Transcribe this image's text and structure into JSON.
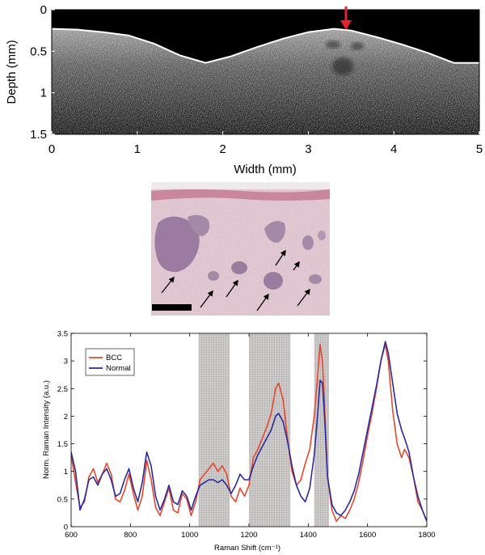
{
  "chart_data": [
    {
      "type": "heatmap",
      "panel": "oct",
      "xlabel": "Width (mm)",
      "ylabel": "Depth (mm)",
      "xlim": [
        0,
        5
      ],
      "ylim": [
        0,
        1.5
      ],
      "x_ticks": [
        0,
        1,
        2,
        3,
        4,
        5
      ],
      "y_ticks": [
        0,
        0.5,
        1,
        1.5
      ],
      "y_tick_labels": [
        "0",
        "0.5",
        "1",
        "1.5"
      ],
      "y_inverted": true,
      "colormap": "grayscale",
      "surface_depth_profile": {
        "width": [
          0.0,
          0.3,
          0.6,
          0.9,
          1.2,
          1.5,
          1.8,
          2.1,
          2.4,
          2.7,
          3.0,
          3.3,
          3.5,
          3.8,
          4.1,
          4.4,
          4.7,
          4.95
        ],
        "depth": [
          0.23,
          0.24,
          0.27,
          0.31,
          0.41,
          0.55,
          0.64,
          0.56,
          0.45,
          0.35,
          0.27,
          0.23,
          0.25,
          0.33,
          0.42,
          0.52,
          0.64,
          0.64
        ]
      },
      "annotations": [
        {
          "type": "arrow",
          "color": "#e8202a",
          "x": 3.5,
          "y": 0.22
        }
      ]
    },
    {
      "type": "image",
      "panel": "histology",
      "description_colors": {
        "background": "#e8cdd5",
        "nodules": "#9a7a9e"
      },
      "arrows": 9,
      "scale_bar": true
    },
    {
      "type": "line",
      "panel": "raman",
      "xlabel": "Raman Shift (cm⁻¹)",
      "ylabel": "Norm. Raman Intensity (a.u.)",
      "xlim": [
        600,
        1800
      ],
      "ylim": [
        0,
        3.5
      ],
      "x_ticks": [
        600,
        800,
        1000,
        1200,
        1400,
        1600,
        1800
      ],
      "y_ticks": [
        0,
        0.5,
        1,
        1.5,
        2,
        2.5,
        3,
        3.5
      ],
      "y_tick_labels": [
        "0",
        "0.5",
        "1",
        "1.5",
        "2",
        "2.5",
        "3",
        "3.5"
      ],
      "legend_position": "top-left",
      "shaded_regions": [
        [
          1030,
          1135
        ],
        [
          1200,
          1340
        ],
        [
          1420,
          1470
        ]
      ],
      "series": [
        {
          "name": "BCC",
          "color": "#e8472a",
          "x": [
            600,
            615,
            630,
            645,
            660,
            675,
            690,
            705,
            720,
            735,
            750,
            765,
            780,
            795,
            810,
            825,
            840,
            855,
            870,
            885,
            900,
            915,
            930,
            945,
            960,
            975,
            990,
            1005,
            1020,
            1035,
            1050,
            1065,
            1080,
            1095,
            1110,
            1125,
            1140,
            1155,
            1170,
            1185,
            1200,
            1215,
            1230,
            1245,
            1260,
            1275,
            1290,
            1300,
            1315,
            1330,
            1345,
            1360,
            1375,
            1390,
            1405,
            1420,
            1430,
            1440,
            1448,
            1455,
            1465,
            1480,
            1495,
            1510,
            1525,
            1540,
            1555,
            1570,
            1585,
            1600,
            1615,
            1630,
            1645,
            1660,
            1670,
            1685,
            1700,
            1715,
            1725,
            1740,
            1755,
            1770,
            1785,
            1800
          ],
          "y": [
            1.3,
            0.8,
            0.35,
            0.45,
            0.9,
            1.05,
            0.8,
            0.95,
            1.15,
            0.95,
            0.5,
            0.45,
            0.65,
            0.95,
            0.6,
            0.3,
            0.55,
            1.2,
            0.85,
            0.35,
            0.2,
            0.45,
            0.7,
            0.3,
            0.25,
            0.6,
            0.5,
            0.2,
            0.45,
            0.85,
            0.95,
            1.05,
            1.15,
            1.0,
            1.1,
            0.95,
            0.55,
            0.45,
            0.7,
            0.55,
            0.75,
            1.25,
            1.4,
            1.6,
            1.8,
            2.05,
            2.5,
            2.6,
            2.3,
            1.6,
            1.0,
            0.75,
            0.85,
            1.15,
            1.4,
            2.0,
            2.6,
            3.3,
            3.0,
            2.2,
            0.9,
            0.3,
            0.1,
            0.2,
            0.15,
            0.3,
            0.5,
            0.8,
            1.2,
            1.65,
            2.05,
            2.5,
            3.0,
            3.3,
            3.0,
            2.1,
            1.5,
            1.25,
            1.4,
            1.25,
            0.9,
            0.45,
            0.3,
            0.1
          ]
        },
        {
          "name": "Normal",
          "color": "#2a2aa0",
          "x": [
            600,
            615,
            630,
            645,
            660,
            675,
            690,
            705,
            720,
            735,
            750,
            765,
            780,
            795,
            810,
            825,
            840,
            855,
            870,
            885,
            900,
            915,
            930,
            945,
            960,
            975,
            990,
            1005,
            1020,
            1035,
            1050,
            1065,
            1080,
            1095,
            1110,
            1125,
            1140,
            1155,
            1170,
            1185,
            1200,
            1215,
            1230,
            1245,
            1260,
            1275,
            1290,
            1300,
            1315,
            1330,
            1345,
            1360,
            1375,
            1390,
            1405,
            1420,
            1430,
            1440,
            1448,
            1455,
            1465,
            1480,
            1495,
            1510,
            1525,
            1540,
            1555,
            1570,
            1585,
            1600,
            1615,
            1630,
            1645,
            1660,
            1670,
            1685,
            1700,
            1715,
            1725,
            1740,
            1755,
            1770,
            1785,
            1800
          ],
          "y": [
            1.35,
            1.0,
            0.3,
            0.5,
            0.85,
            0.9,
            0.75,
            0.95,
            1.05,
            0.85,
            0.55,
            0.6,
            0.85,
            1.05,
            0.7,
            0.45,
            0.8,
            1.35,
            1.1,
            0.55,
            0.3,
            0.5,
            0.75,
            0.45,
            0.4,
            0.65,
            0.55,
            0.3,
            0.55,
            0.75,
            0.8,
            0.85,
            0.85,
            0.8,
            0.85,
            0.75,
            0.6,
            0.75,
            0.95,
            0.85,
            0.85,
            1.1,
            1.3,
            1.45,
            1.6,
            1.75,
            2.0,
            2.05,
            1.9,
            1.55,
            1.1,
            0.75,
            0.55,
            0.45,
            0.7,
            1.3,
            1.9,
            2.65,
            2.6,
            2.0,
            0.9,
            0.4,
            0.25,
            0.2,
            0.3,
            0.45,
            0.65,
            0.95,
            1.35,
            1.75,
            2.15,
            2.55,
            3.0,
            3.35,
            3.15,
            2.6,
            2.05,
            1.75,
            1.6,
            1.35,
            0.9,
            0.55,
            0.3,
            0.1
          ]
        }
      ]
    }
  ]
}
